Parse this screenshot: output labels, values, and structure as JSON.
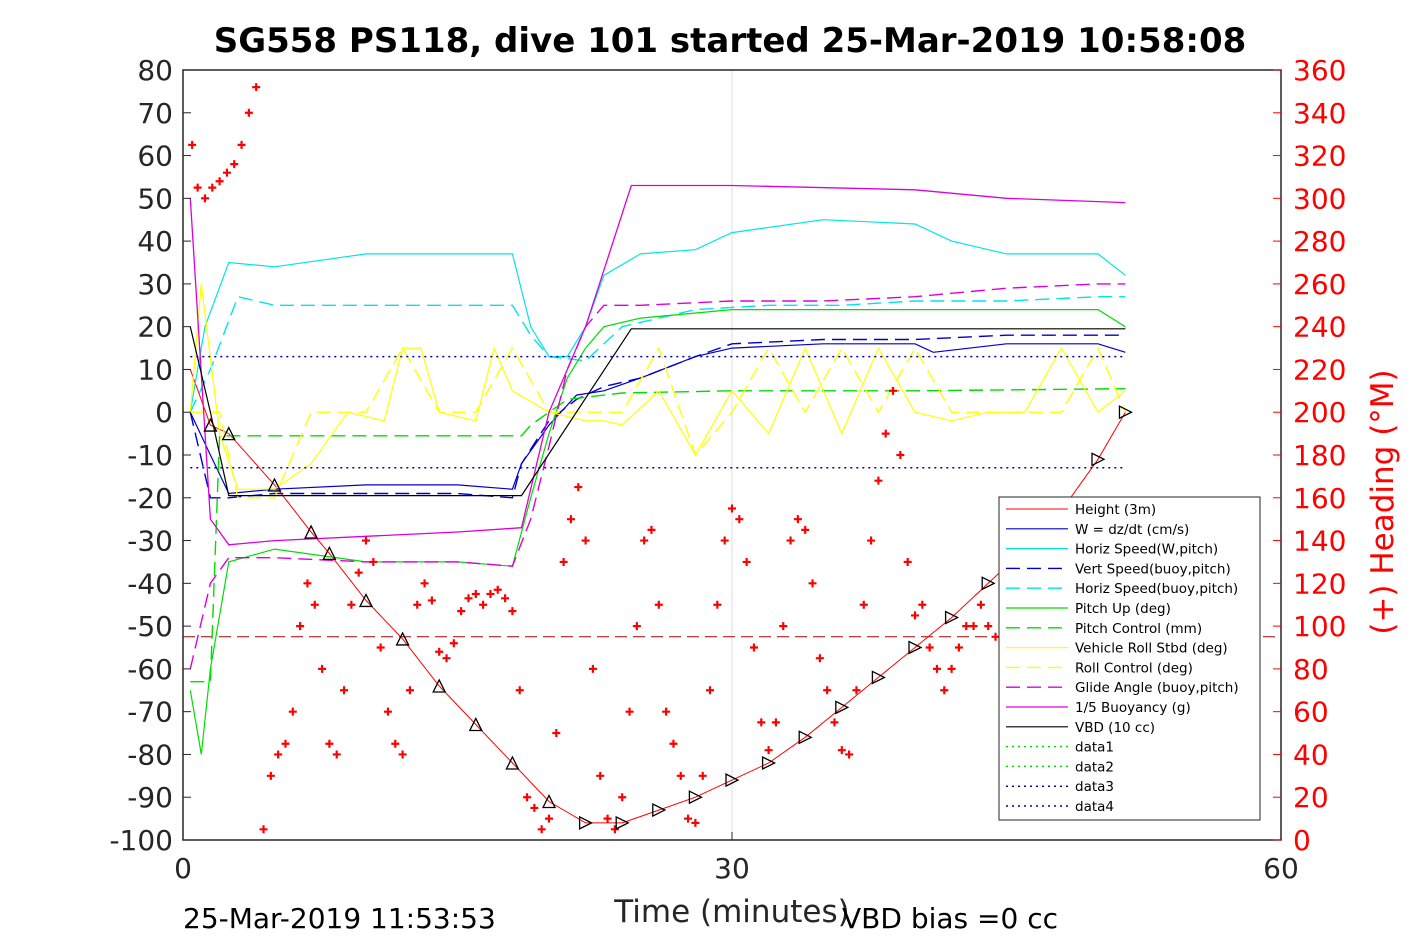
{
  "title": "SG558 PS118, dive 101 started 25-Mar-2019 10:58:08",
  "footer": {
    "timestamp": "25-Mar-2019 11:53:53",
    "vbd_bias": "VBD bias =0 cc"
  },
  "chart_data": {
    "type": "line",
    "title": "SG558 PS118, dive 101 started 25-Mar-2019 10:58:08",
    "xlabel": "Time (minutes)",
    "ylabel": "",
    "y2label": "(+) Heading (°M)",
    "xlim": [
      0,
      60
    ],
    "ylim": [
      -100,
      80
    ],
    "y2lim": [
      0,
      360
    ],
    "xticks": [
      0,
      30,
      60
    ],
    "yticks": [
      -100,
      -90,
      -80,
      -70,
      -60,
      -50,
      -40,
      -30,
      -20,
      -10,
      0,
      10,
      20,
      30,
      40,
      50,
      60,
      70,
      80
    ],
    "y2ticks": [
      0,
      20,
      40,
      60,
      80,
      100,
      120,
      140,
      160,
      180,
      200,
      220,
      240,
      260,
      280,
      300,
      320,
      340,
      360
    ],
    "grid": "x only",
    "legend_position": "lower-right",
    "colors": {
      "height": "#ff0000",
      "w": "#0000cc",
      "hspd": "#00e5e5",
      "pitch": "#00dd00",
      "roll": "#ffff00",
      "glide": "#dd00dd",
      "buoy": "#dd00dd",
      "vbd": "#000000",
      "heading": "#ff0000",
      "ref_pitch": "#0000aa"
    },
    "legend": [
      "Height (3m)",
      "W = dz/dt (cm/s)",
      "Horiz Speed(W,pitch)",
      "Vert Speed(buoy,pitch)",
      "Horiz Speed(buoy,pitch)",
      "Pitch Up (deg)",
      "Pitch Control (mm)",
      "Vehicle Roll Stbd (deg)",
      "Roll Control (deg)",
      "Glide Angle (buoy,pitch)",
      "1/5 Buoyancy (g)",
      "VBD (10 cc)",
      "data1",
      "data2",
      "data3",
      "data4"
    ],
    "series": [
      {
        "name": "Height (3m)",
        "x": [
          0.4,
          1.5,
          2.5,
          5,
          7,
          8,
          10,
          12,
          14,
          16,
          18,
          20,
          22,
          24,
          26,
          28,
          30,
          32,
          34,
          36,
          38,
          40,
          42,
          44,
          46,
          48,
          50,
          51.5
        ],
        "y": [
          10,
          -3,
          -5,
          -17,
          -28,
          -33,
          -44,
          -53,
          -64,
          -73,
          -82,
          -91,
          -96,
          -96,
          -93,
          -90,
          -86,
          -82,
          -76,
          -69,
          -62,
          -55,
          -48,
          -40,
          -32,
          -23,
          -11,
          0
        ]
      },
      {
        "name": "W = dz/dt (cm/s)",
        "x": [
          0.4,
          1.5,
          2.5,
          5,
          10,
          15,
          18,
          18.5,
          20,
          21.5,
          23,
          25,
          28,
          30,
          35,
          40,
          41,
          45,
          50,
          51.5
        ],
        "y": [
          0,
          -10,
          -19,
          -18,
          -17,
          -17,
          -18,
          -12,
          -3,
          4,
          5,
          8,
          13,
          15,
          16,
          16,
          14,
          16,
          16,
          14
        ]
      },
      {
        "name": "Horiz Speed(W,pitch)",
        "x": [
          0.4,
          1.2,
          2.5,
          5,
          10,
          15,
          18,
          19,
          20,
          21,
          22,
          23,
          25,
          28,
          30,
          35,
          40,
          42,
          45,
          50,
          51.5
        ],
        "y": [
          0,
          20,
          35,
          34,
          37,
          37,
          37,
          20,
          13,
          13,
          20,
          32,
          37,
          38,
          42,
          45,
          44,
          40,
          37,
          37,
          32
        ]
      },
      {
        "name": "Vert Speed(buoy,pitch)",
        "x": [
          0.4,
          1.5,
          2.5,
          5,
          10,
          15,
          18,
          18.5,
          20,
          21.5,
          23,
          25,
          28,
          30,
          35,
          40,
          45,
          50,
          51.5
        ],
        "y": [
          0,
          -20,
          -20,
          -19,
          -19,
          -19,
          -20,
          -12,
          -2,
          3,
          6,
          8,
          13,
          16,
          17,
          17,
          18,
          18,
          18
        ]
      },
      {
        "name": "Horiz Speed(buoy,pitch)",
        "x": [
          0.4,
          1.5,
          3,
          5,
          10,
          15,
          18,
          19,
          20,
          22,
          24,
          28,
          32,
          36,
          40,
          45,
          50,
          51.5
        ],
        "y": [
          0,
          10,
          27,
          25,
          25,
          25,
          25,
          18,
          13,
          12,
          20,
          24,
          25,
          25,
          26,
          26,
          27,
          27
        ]
      },
      {
        "name": "Pitch Up (deg)",
        "x": [
          0.4,
          1,
          1.5,
          2.5,
          5,
          10,
          15,
          18,
          19,
          20,
          21,
          22,
          23,
          25,
          30,
          35,
          40,
          45,
          50,
          51.5
        ],
        "y": [
          -65,
          -80,
          -60,
          -35,
          -32,
          -35,
          -35,
          -36,
          -20,
          -5,
          8,
          15,
          20,
          22,
          24,
          24,
          24,
          24,
          24,
          20
        ]
      },
      {
        "name": "Pitch Control (mm)",
        "x": [
          0.4,
          1.5,
          2,
          10,
          18.5,
          19,
          21,
          24,
          30,
          40,
          51.5
        ],
        "y": [
          -63,
          -63,
          -5.5,
          -5.5,
          -5.5,
          -3,
          3,
          4.5,
          5,
          5,
          5.5
        ]
      },
      {
        "name": "Vehicle Roll Stbd (deg)",
        "x": [
          0.4,
          1,
          2,
          3,
          5,
          7,
          9,
          11,
          12,
          13,
          14,
          16,
          17,
          18,
          20,
          22,
          23,
          24,
          26,
          28,
          30,
          32,
          34,
          36,
          38,
          40,
          42,
          44,
          46,
          48,
          50,
          51.5
        ],
        "y": [
          0,
          30,
          -5,
          -18,
          -18,
          -12,
          0,
          -2,
          15,
          15,
          0,
          -2,
          15,
          5,
          0,
          -2,
          -2,
          -3,
          5,
          -10,
          5,
          -5,
          15,
          -5,
          15,
          0,
          -2,
          0,
          0,
          15,
          0,
          5
        ]
      },
      {
        "name": "Roll Control (deg)",
        "x": [
          0.4,
          2,
          3,
          5,
          7,
          10,
          12,
          14,
          16,
          18,
          20,
          22,
          24,
          26,
          28,
          30,
          32,
          34,
          36,
          38,
          40,
          42,
          44,
          46,
          48,
          50,
          51.5
        ],
        "y": [
          0,
          0,
          -20,
          -20,
          0,
          0,
          15,
          0,
          0,
          15,
          0,
          0,
          0,
          15,
          -10,
          0,
          15,
          0,
          15,
          0,
          15,
          0,
          0,
          0,
          0,
          15,
          0
        ]
      },
      {
        "name": "Glide Angle (buoy,pitch)",
        "x": [
          0.4,
          1.5,
          2.5,
          5,
          10,
          15,
          18,
          19,
          20,
          21,
          22,
          23,
          25,
          30,
          35,
          40,
          45,
          50,
          51.5
        ],
        "y": [
          -60,
          -40,
          -34,
          -34,
          -35,
          -35,
          -36,
          -25,
          -8,
          10,
          20,
          25,
          25,
          26,
          26,
          27,
          29,
          30,
          30
        ]
      },
      {
        "name": "1/5 Buoyancy (g)",
        "x": [
          0.4,
          1.5,
          2.5,
          5,
          10,
          15,
          18.5,
          20,
          22,
          24.5,
          30,
          40,
          45,
          51.5
        ],
        "y": [
          50,
          -25,
          -31,
          -30,
          -29,
          -28,
          -27,
          0,
          20,
          53,
          53,
          52,
          50,
          49
        ]
      },
      {
        "name": "VBD (10 cc)",
        "x": [
          0.4,
          1.5,
          2.5,
          18.5,
          24.5,
          51.5
        ],
        "y": [
          20,
          0,
          -19.5,
          -19.5,
          19.5,
          19.5
        ]
      },
      {
        "name": "data1",
        "x": [],
        "y": []
      },
      {
        "name": "data2",
        "x": [],
        "y": []
      },
      {
        "name": "data3",
        "x": [
          0.4,
          51.5
        ],
        "y": [
          13,
          13
        ]
      },
      {
        "name": "data4",
        "x": [
          0.4,
          51.5
        ],
        "y": [
          -13,
          -13
        ]
      }
    ],
    "reference_lines": [
      {
        "axis": "y",
        "value": -52.5,
        "color": "#aa0000",
        "style": "dashed"
      }
    ],
    "heading_series": {
      "name": "(+) Heading (°M)",
      "axis": "right",
      "x": [
        0.5,
        0.8,
        1.2,
        1.6,
        2.0,
        2.4,
        2.8,
        3.2,
        3.6,
        4.0,
        4.4,
        4.8,
        5.2,
        5.6,
        6.0,
        6.4,
        6.8,
        7.2,
        7.6,
        8.0,
        8.4,
        8.8,
        9.2,
        9.6,
        10.0,
        10.4,
        10.8,
        11.2,
        11.6,
        12.0,
        12.4,
        12.8,
        13.2,
        13.6,
        14.0,
        14.4,
        14.8,
        15.2,
        15.6,
        16.0,
        16.4,
        16.8,
        17.2,
        17.6,
        18.0,
        18.4,
        18.8,
        19.2,
        19.6,
        20.0,
        20.4,
        20.8,
        21.2,
        21.6,
        22.0,
        22.4,
        22.8,
        23.2,
        23.6,
        24.0,
        24.4,
        24.8,
        25.2,
        25.6,
        26.0,
        26.4,
        26.8,
        27.2,
        27.6,
        28.0,
        28.4,
        28.8,
        29.2,
        29.6,
        30.0,
        30.4,
        30.8,
        31.2,
        31.6,
        32.0,
        32.4,
        32.8,
        33.2,
        33.6,
        34.0,
        34.4,
        34.8,
        35.2,
        35.6,
        36.0,
        36.4,
        36.8,
        37.2,
        37.6,
        38.0,
        38.4,
        38.8,
        39.2,
        39.6,
        40.0,
        40.4,
        40.8,
        41.2,
        41.6,
        42.0,
        42.4,
        42.8,
        43.2,
        43.6,
        44.0,
        44.4,
        44.8,
        45.2,
        45.6,
        46.0
      ],
      "y": [
        325,
        305,
        300,
        305,
        308,
        312,
        316,
        325,
        340,
        352,
        5,
        30,
        40,
        45,
        60,
        100,
        120,
        110,
        80,
        45,
        40,
        70,
        110,
        125,
        140,
        130,
        90,
        60,
        45,
        40,
        70,
        110,
        120,
        112,
        88,
        85,
        92,
        107,
        113,
        115,
        110,
        115,
        117,
        113,
        107,
        70,
        20,
        15,
        5,
        10,
        50,
        130,
        150,
        165,
        140,
        80,
        30,
        10,
        5,
        20,
        60,
        100,
        140,
        145,
        110,
        60,
        45,
        30,
        10,
        8,
        30,
        70,
        110,
        140,
        155,
        150,
        130,
        90,
        55,
        42,
        55,
        100,
        140,
        150,
        145,
        120,
        85,
        70,
        55,
        42,
        40,
        70,
        110,
        140,
        168,
        190,
        210,
        180,
        130,
        105,
        110,
        90,
        80,
        70,
        80,
        90,
        100,
        100,
        110,
        100,
        95,
        90,
        90,
        95,
        95
      ]
    }
  }
}
